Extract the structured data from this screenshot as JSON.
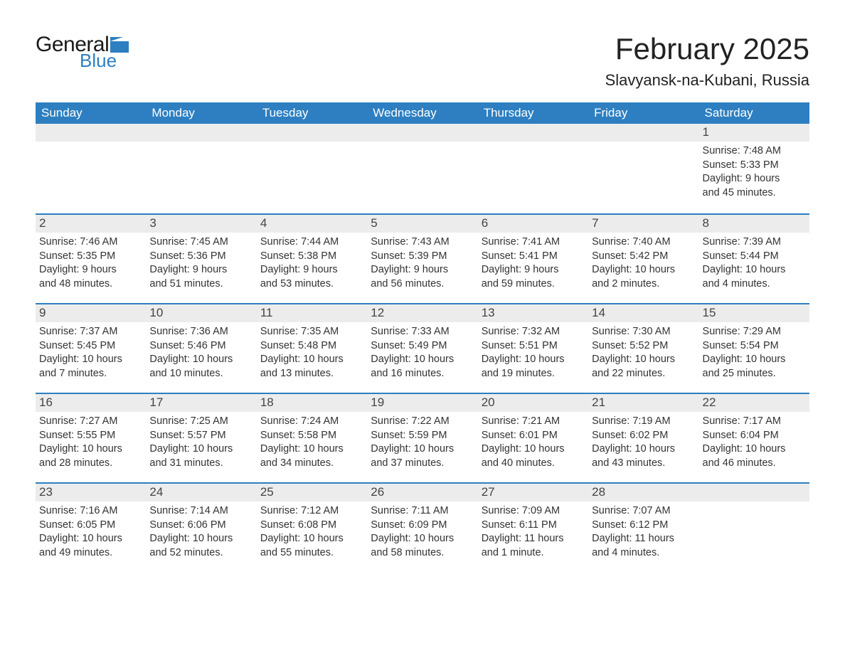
{
  "logo": {
    "text1": "General",
    "text2": "Blue",
    "flag_color": "#2d7fc1"
  },
  "title": "February 2025",
  "location": "Slavyansk-na-Kubani, Russia",
  "colors": {
    "header_bg": "#2d7fc1",
    "header_text": "#ffffff",
    "week_border": "#2d7fc1",
    "daynum_bg": "#ececec",
    "body_text": "#333333",
    "page_bg": "#ffffff"
  },
  "typography": {
    "title_fontsize": 42,
    "location_fontsize": 22,
    "dow_fontsize": 17,
    "daynum_fontsize": 17,
    "body_fontsize": 14.5,
    "font_family": "Segoe UI"
  },
  "days_of_week": [
    "Sunday",
    "Monday",
    "Tuesday",
    "Wednesday",
    "Thursday",
    "Friday",
    "Saturday"
  ],
  "weeks": [
    [
      null,
      null,
      null,
      null,
      null,
      null,
      {
        "n": "1",
        "sunrise": "Sunrise: 7:48 AM",
        "sunset": "Sunset: 5:33 PM",
        "d1": "Daylight: 9 hours",
        "d2": "and 45 minutes."
      }
    ],
    [
      {
        "n": "2",
        "sunrise": "Sunrise: 7:46 AM",
        "sunset": "Sunset: 5:35 PM",
        "d1": "Daylight: 9 hours",
        "d2": "and 48 minutes."
      },
      {
        "n": "3",
        "sunrise": "Sunrise: 7:45 AM",
        "sunset": "Sunset: 5:36 PM",
        "d1": "Daylight: 9 hours",
        "d2": "and 51 minutes."
      },
      {
        "n": "4",
        "sunrise": "Sunrise: 7:44 AM",
        "sunset": "Sunset: 5:38 PM",
        "d1": "Daylight: 9 hours",
        "d2": "and 53 minutes."
      },
      {
        "n": "5",
        "sunrise": "Sunrise: 7:43 AM",
        "sunset": "Sunset: 5:39 PM",
        "d1": "Daylight: 9 hours",
        "d2": "and 56 minutes."
      },
      {
        "n": "6",
        "sunrise": "Sunrise: 7:41 AM",
        "sunset": "Sunset: 5:41 PM",
        "d1": "Daylight: 9 hours",
        "d2": "and 59 minutes."
      },
      {
        "n": "7",
        "sunrise": "Sunrise: 7:40 AM",
        "sunset": "Sunset: 5:42 PM",
        "d1": "Daylight: 10 hours",
        "d2": "and 2 minutes."
      },
      {
        "n": "8",
        "sunrise": "Sunrise: 7:39 AM",
        "sunset": "Sunset: 5:44 PM",
        "d1": "Daylight: 10 hours",
        "d2": "and 4 minutes."
      }
    ],
    [
      {
        "n": "9",
        "sunrise": "Sunrise: 7:37 AM",
        "sunset": "Sunset: 5:45 PM",
        "d1": "Daylight: 10 hours",
        "d2": "and 7 minutes."
      },
      {
        "n": "10",
        "sunrise": "Sunrise: 7:36 AM",
        "sunset": "Sunset: 5:46 PM",
        "d1": "Daylight: 10 hours",
        "d2": "and 10 minutes."
      },
      {
        "n": "11",
        "sunrise": "Sunrise: 7:35 AM",
        "sunset": "Sunset: 5:48 PM",
        "d1": "Daylight: 10 hours",
        "d2": "and 13 minutes."
      },
      {
        "n": "12",
        "sunrise": "Sunrise: 7:33 AM",
        "sunset": "Sunset: 5:49 PM",
        "d1": "Daylight: 10 hours",
        "d2": "and 16 minutes."
      },
      {
        "n": "13",
        "sunrise": "Sunrise: 7:32 AM",
        "sunset": "Sunset: 5:51 PM",
        "d1": "Daylight: 10 hours",
        "d2": "and 19 minutes."
      },
      {
        "n": "14",
        "sunrise": "Sunrise: 7:30 AM",
        "sunset": "Sunset: 5:52 PM",
        "d1": "Daylight: 10 hours",
        "d2": "and 22 minutes."
      },
      {
        "n": "15",
        "sunrise": "Sunrise: 7:29 AM",
        "sunset": "Sunset: 5:54 PM",
        "d1": "Daylight: 10 hours",
        "d2": "and 25 minutes."
      }
    ],
    [
      {
        "n": "16",
        "sunrise": "Sunrise: 7:27 AM",
        "sunset": "Sunset: 5:55 PM",
        "d1": "Daylight: 10 hours",
        "d2": "and 28 minutes."
      },
      {
        "n": "17",
        "sunrise": "Sunrise: 7:25 AM",
        "sunset": "Sunset: 5:57 PM",
        "d1": "Daylight: 10 hours",
        "d2": "and 31 minutes."
      },
      {
        "n": "18",
        "sunrise": "Sunrise: 7:24 AM",
        "sunset": "Sunset: 5:58 PM",
        "d1": "Daylight: 10 hours",
        "d2": "and 34 minutes."
      },
      {
        "n": "19",
        "sunrise": "Sunrise: 7:22 AM",
        "sunset": "Sunset: 5:59 PM",
        "d1": "Daylight: 10 hours",
        "d2": "and 37 minutes."
      },
      {
        "n": "20",
        "sunrise": "Sunrise: 7:21 AM",
        "sunset": "Sunset: 6:01 PM",
        "d1": "Daylight: 10 hours",
        "d2": "and 40 minutes."
      },
      {
        "n": "21",
        "sunrise": "Sunrise: 7:19 AM",
        "sunset": "Sunset: 6:02 PM",
        "d1": "Daylight: 10 hours",
        "d2": "and 43 minutes."
      },
      {
        "n": "22",
        "sunrise": "Sunrise: 7:17 AM",
        "sunset": "Sunset: 6:04 PM",
        "d1": "Daylight: 10 hours",
        "d2": "and 46 minutes."
      }
    ],
    [
      {
        "n": "23",
        "sunrise": "Sunrise: 7:16 AM",
        "sunset": "Sunset: 6:05 PM",
        "d1": "Daylight: 10 hours",
        "d2": "and 49 minutes."
      },
      {
        "n": "24",
        "sunrise": "Sunrise: 7:14 AM",
        "sunset": "Sunset: 6:06 PM",
        "d1": "Daylight: 10 hours",
        "d2": "and 52 minutes."
      },
      {
        "n": "25",
        "sunrise": "Sunrise: 7:12 AM",
        "sunset": "Sunset: 6:08 PM",
        "d1": "Daylight: 10 hours",
        "d2": "and 55 minutes."
      },
      {
        "n": "26",
        "sunrise": "Sunrise: 7:11 AM",
        "sunset": "Sunset: 6:09 PM",
        "d1": "Daylight: 10 hours",
        "d2": "and 58 minutes."
      },
      {
        "n": "27",
        "sunrise": "Sunrise: 7:09 AM",
        "sunset": "Sunset: 6:11 PM",
        "d1": "Daylight: 11 hours",
        "d2": "and 1 minute."
      },
      {
        "n": "28",
        "sunrise": "Sunrise: 7:07 AM",
        "sunset": "Sunset: 6:12 PM",
        "d1": "Daylight: 11 hours",
        "d2": "and 4 minutes."
      },
      null
    ]
  ]
}
